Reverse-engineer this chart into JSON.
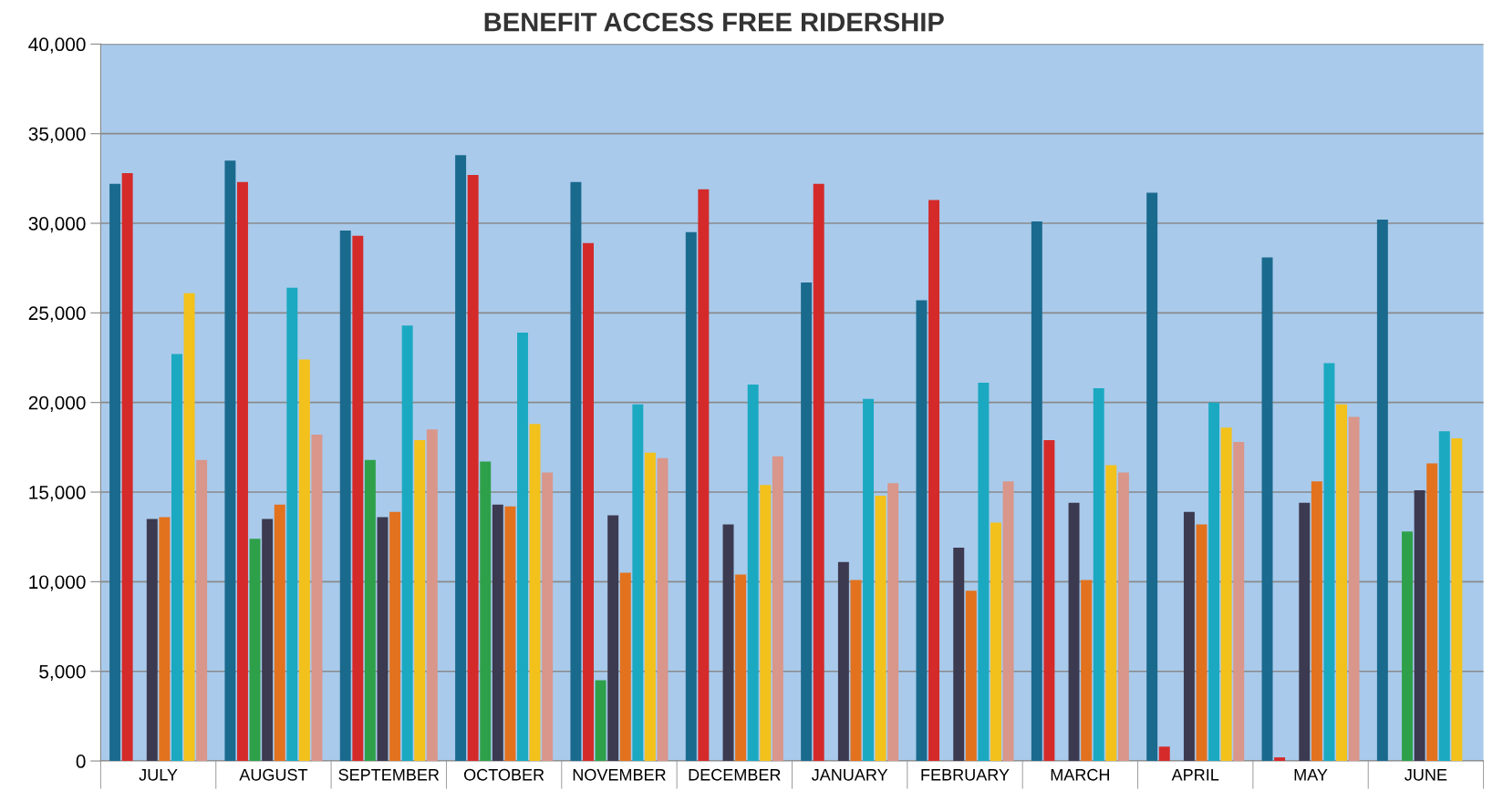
{
  "chart_data": {
    "type": "bar",
    "title": "BENEFIT ACCESS FREE RIDERSHIP",
    "categories": [
      "JULY",
      "AUGUST",
      "SEPTEMBER",
      "OCTOBER",
      "NOVEMBER",
      "DECEMBER",
      "JANUARY",
      "FEBRUARY",
      "MARCH",
      "APRIL",
      "MAY",
      "JUNE"
    ],
    "series": [
      {
        "color": "#1a6a8e",
        "values": [
          32200,
          33500,
          29600,
          33800,
          32300,
          29500,
          26700,
          25700,
          30100,
          31700,
          28100,
          30200
        ]
      },
      {
        "color": "#d42a2a",
        "values": [
          32800,
          32300,
          29300,
          32700,
          28900,
          31900,
          32200,
          31300,
          17900,
          800,
          200,
          null
        ]
      },
      {
        "color": "#2ea04a",
        "values": [
          null,
          12400,
          16800,
          16700,
          4500,
          null,
          null,
          null,
          null,
          null,
          null,
          12800
        ]
      },
      {
        "color": "#3c3a50",
        "values": [
          13500,
          13500,
          13600,
          14300,
          13700,
          13200,
          11100,
          11900,
          14400,
          13900,
          14400,
          15100
        ]
      },
      {
        "color": "#e2721e",
        "values": [
          13600,
          14300,
          13900,
          14200,
          10500,
          10400,
          10100,
          9500,
          10100,
          13200,
          15600,
          16600
        ]
      },
      {
        "color": "#1ba9c1",
        "values": [
          22700,
          26400,
          24300,
          23900,
          19900,
          21000,
          20200,
          21100,
          20800,
          20000,
          22200,
          18400
        ]
      },
      {
        "color": "#f3c11b",
        "values": [
          26100,
          22400,
          17900,
          18800,
          17200,
          15400,
          14800,
          13300,
          16500,
          18600,
          19900,
          18000
        ]
      },
      {
        "color": "#d9968a",
        "values": [
          16800,
          18200,
          18500,
          16100,
          16900,
          17000,
          15500,
          15600,
          16100,
          17800,
          19200,
          null
        ]
      }
    ],
    "ylim": [
      0,
      40000
    ],
    "yticks": [
      0,
      {
        "value": 5000,
        "label": "5,000"
      },
      {
        "value": 10000,
        "label": "10,000"
      },
      {
        "value": 15000,
        "label": "15,000"
      },
      {
        "value": 20000,
        "label": "20,000"
      },
      {
        "value": 25000,
        "label": "25,000"
      },
      {
        "value": 30000,
        "label": "30,000"
      },
      {
        "value": 35000,
        "label": "35,000"
      },
      {
        "value": 40000,
        "label": "40,000"
      }
    ],
    "grid": "y"
  }
}
